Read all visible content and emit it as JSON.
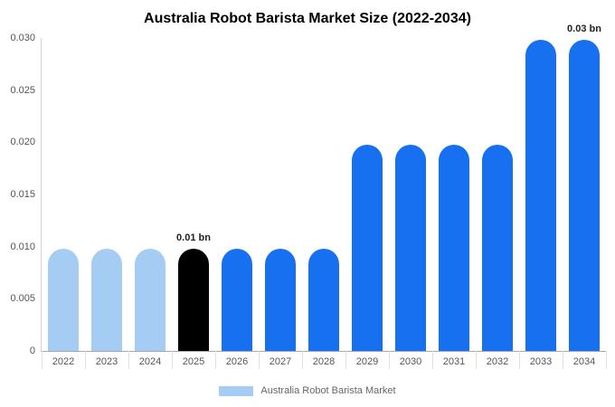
{
  "title": "Australia Robot Barista Market Size (2022-2034)",
  "chart_data": {
    "type": "bar",
    "title": "Australia Robot Barista Market Size (2022-2034)",
    "categories": [
      "2022",
      "2023",
      "2024",
      "2025",
      "2026",
      "2027",
      "2028",
      "2029",
      "2030",
      "2031",
      "2032",
      "2033",
      "2034"
    ],
    "values": [
      0.0098,
      0.0098,
      0.0098,
      0.0098,
      0.0098,
      0.0098,
      0.0098,
      0.0198,
      0.0198,
      0.0198,
      0.0198,
      0.0298,
      0.0298
    ],
    "bar_colors": [
      "#a5cdf3",
      "#a5cdf3",
      "#a5cdf3",
      "#000000",
      "#1670f0",
      "#1670f0",
      "#1670f0",
      "#1670f0",
      "#1670f0",
      "#1670f0",
      "#1670f0",
      "#1670f0",
      "#1670f0"
    ],
    "xlabel": "",
    "ylabel": "",
    "ylim": [
      0,
      0.03
    ],
    "yticks": [
      "0",
      "0.005",
      "0.010",
      "0.015",
      "0.020",
      "0.025",
      "0.030"
    ],
    "grid": false,
    "legend_position": "bottom",
    "annotations": [
      {
        "category": "2025",
        "text": "0.01 bn"
      },
      {
        "category": "2034",
        "text": "0.03 bn"
      }
    ],
    "legend": [
      {
        "label": "Australia Robot Barista Market",
        "color": "#a5cdf3"
      }
    ]
  }
}
